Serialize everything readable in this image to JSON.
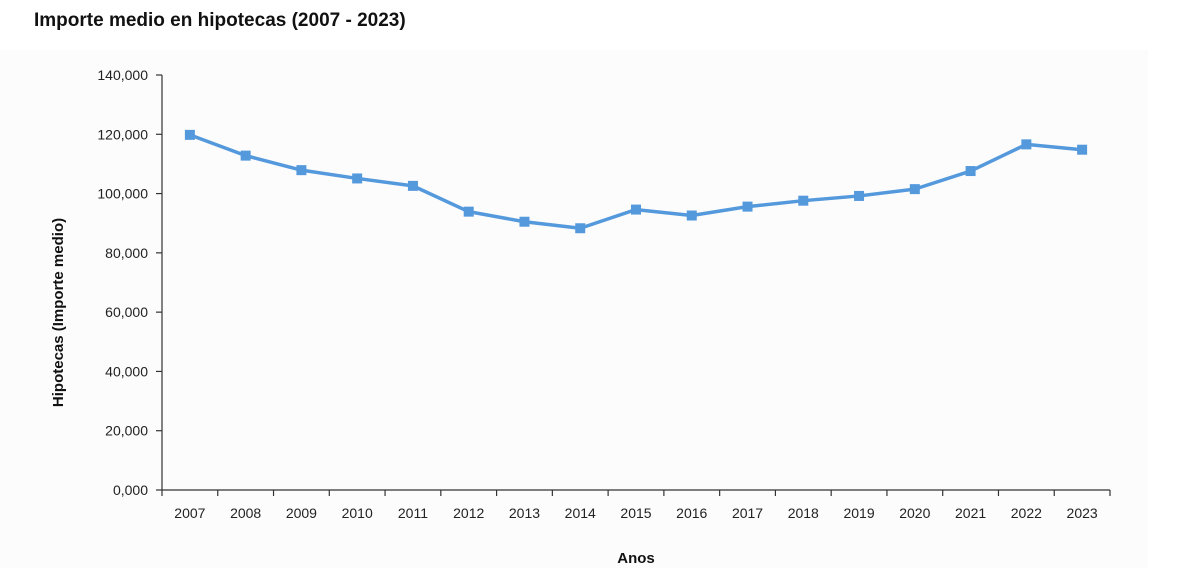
{
  "page": {
    "title": "Importe medio en hipotecas (2007 - 2023)"
  },
  "colors": {
    "series": "#5599dd",
    "axis": "#333333",
    "background": "#fcfcfc"
  },
  "chart_data": {
    "type": "line",
    "title": "Importe medio en hipotecas (2007 - 2023)",
    "xlabel": "Anos",
    "ylabel": "Hipotecas (Importe medio)",
    "categories": [
      "2007",
      "2008",
      "2009",
      "2010",
      "2011",
      "2012",
      "2013",
      "2014",
      "2015",
      "2016",
      "2017",
      "2018",
      "2019",
      "2020",
      "2021",
      "2022",
      "2023"
    ],
    "series": [
      {
        "values": [
          119800,
          112800,
          107900,
          105100,
          102600,
          93900,
          90500,
          88300,
          94600,
          92600,
          95600,
          97600,
          99200,
          101500,
          107600,
          116600,
          114800
        ],
        "marker": "square"
      }
    ],
    "ylim": [
      0,
      140000
    ],
    "yticks": [
      0,
      20000,
      40000,
      60000,
      80000,
      100000,
      120000,
      140000
    ],
    "ytick_labels": [
      "0,000",
      "20,000",
      "40,000",
      "60,000",
      "80,000",
      "100,000",
      "120,000",
      "140,000"
    ],
    "grid": false,
    "legend": "none"
  }
}
